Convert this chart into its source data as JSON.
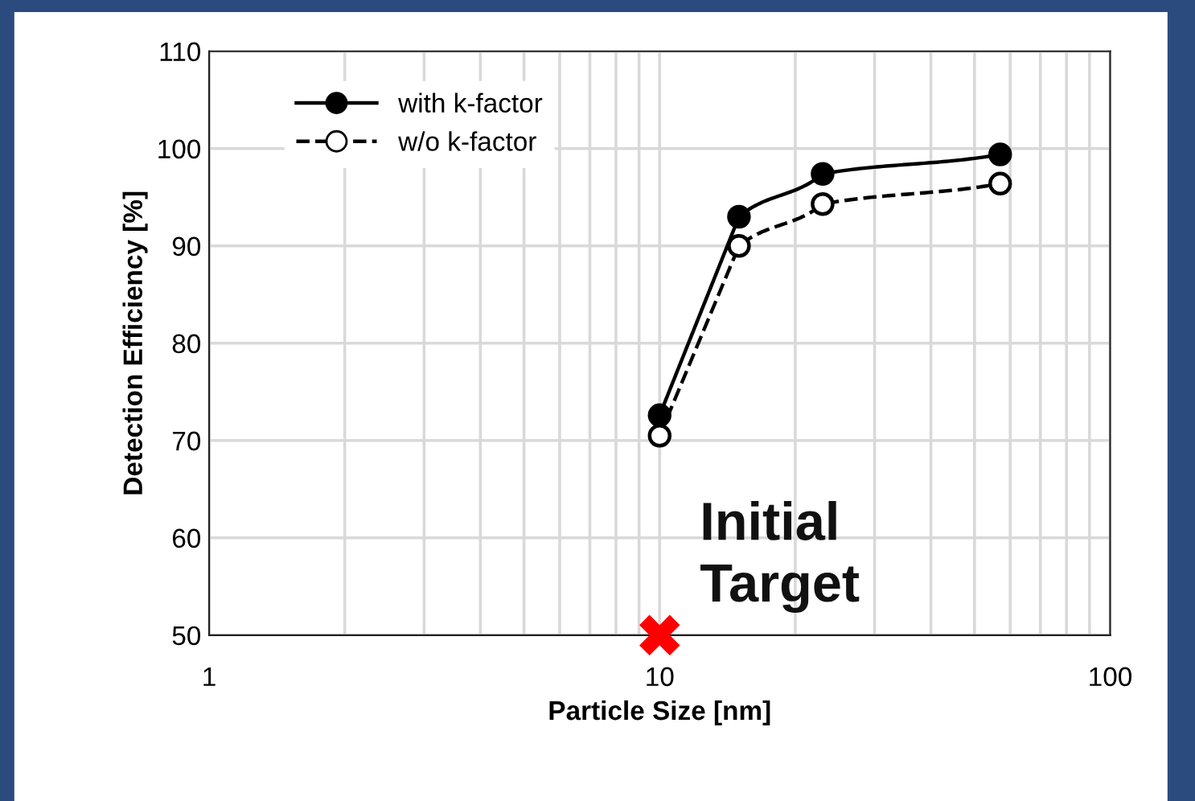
{
  "chart_data": {
    "type": "line",
    "xlabel": "Particle Size [nm]",
    "ylabel": "Detection Efficiency [%]",
    "log": "x",
    "xlim": [
      1,
      100
    ],
    "xticks": [
      1,
      10,
      100
    ],
    "ylim": [
      50,
      110
    ],
    "yticks": [
      50,
      60,
      70,
      80,
      90,
      100,
      110
    ],
    "grid": true,
    "legend": "top left",
    "series": [
      {
        "name": "with k-factor",
        "color": "#000000",
        "marker": "circle",
        "line_style": "solid",
        "x": [
          10,
          15,
          23,
          57
        ],
        "values": [
          72.6,
          93,
          97.4,
          99.4
        ]
      },
      {
        "name": "w/o k-factor",
        "color": "#000000",
        "marker": "circle",
        "line_style": "dashed",
        "x": [
          10,
          15,
          23,
          57
        ],
        "values": [
          70.5,
          90,
          94.3,
          96.4
        ]
      },
      {
        "type": "scatter",
        "color": "#ff0000",
        "marker": "cross",
        "x": [
          10
        ],
        "values": [
          50
        ]
      }
    ],
    "annotations": [
      {
        "text": "Initial\nTarget",
        "x": 10,
        "y": 50
      }
    ]
  }
}
